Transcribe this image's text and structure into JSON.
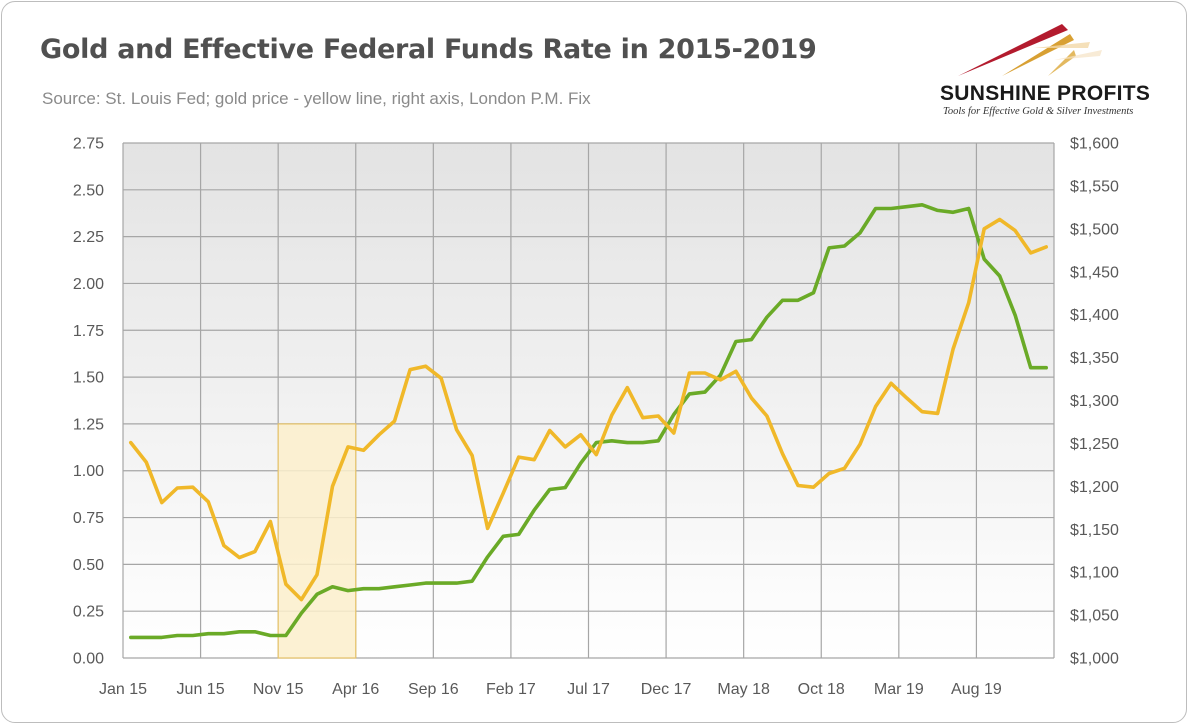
{
  "header": {
    "title": "Gold and Effective Federal Funds Rate in 2015-2019",
    "subtitle": "Source: St. Louis Fed; gold price - yellow line, right axis, London P.M. Fix"
  },
  "logo": {
    "name": "SUNSHINE PROFITS",
    "tagline": "Tools for Effective Gold & Silver Investments"
  },
  "colors": {
    "fed_funds": "#6aaa27",
    "gold": "#f0b829",
    "highlight_fill": "#fbeecb",
    "highlight_border": "#e7c46a",
    "plot_top": "#e3e3e3",
    "plot_bottom": "#ffffff",
    "grid": "#a6a6a6"
  },
  "chart_data": {
    "type": "line",
    "title": "Gold and Effective Federal Funds Rate in 2015-2019",
    "x_tick_labels": [
      "Jan 15",
      "Jun 15",
      "Nov 15",
      "Apr 16",
      "Sep 16",
      "Feb 17",
      "Jul 17",
      "Dec 17",
      "May 18",
      "Oct 18",
      "Mar 19",
      "Aug 19"
    ],
    "left_axis": {
      "ylim": [
        0,
        2.75
      ],
      "ticks": [
        "0.00",
        "0.25",
        "0.50",
        "0.75",
        "1.00",
        "1.25",
        "1.50",
        "1.75",
        "2.00",
        "2.25",
        "2.50",
        "2.75"
      ]
    },
    "right_axis": {
      "ylim": [
        1000,
        1600
      ],
      "ticks": [
        "$1,000",
        "$1,050",
        "$1,100",
        "$1,150",
        "$1,200",
        "$1,250",
        "$1,300",
        "$1,350",
        "$1,400",
        "$1,450",
        "$1,500",
        "$1,550",
        "$1,600"
      ]
    },
    "grid": true,
    "highlight": {
      "x_start_index": 10,
      "x_end_index": 15,
      "y_top": 1.25
    },
    "series": [
      {
        "axis": "left",
        "values": [
          0.11,
          0.11,
          0.11,
          0.12,
          0.12,
          0.13,
          0.13,
          0.14,
          0.14,
          0.12,
          0.12,
          0.24,
          0.34,
          0.38,
          0.36,
          0.37,
          0.37,
          0.38,
          0.39,
          0.4,
          0.4,
          0.4,
          0.41,
          0.54,
          0.65,
          0.66,
          0.79,
          0.9,
          0.91,
          1.04,
          1.15,
          1.16,
          1.15,
          1.15,
          1.16,
          1.3,
          1.41,
          1.42,
          1.51,
          1.69,
          1.7,
          1.82,
          1.91,
          1.91,
          1.95,
          2.19,
          2.2,
          2.27,
          2.4,
          2.4,
          2.41,
          2.42,
          2.39,
          2.38,
          2.4,
          2.13,
          2.04,
          1.83,
          1.55,
          1.55
        ]
      },
      {
        "axis": "right",
        "values": [
          1251,
          1228,
          1181,
          1198,
          1199,
          1182,
          1131,
          1117,
          1124,
          1159,
          1086,
          1068,
          1097,
          1200,
          1246,
          1242,
          1260,
          1276,
          1336,
          1340,
          1326,
          1266,
          1236,
          1151,
          1192,
          1234,
          1231,
          1265,
          1246,
          1260,
          1237,
          1283,
          1315,
          1280,
          1282,
          1262,
          1332,
          1332,
          1324,
          1334,
          1303,
          1282,
          1238,
          1201,
          1199,
          1215,
          1221,
          1249,
          1293,
          1320,
          1303,
          1287,
          1285,
          1360,
          1414,
          1500,
          1511,
          1498,
          1472,
          1479
        ]
      }
    ]
  }
}
